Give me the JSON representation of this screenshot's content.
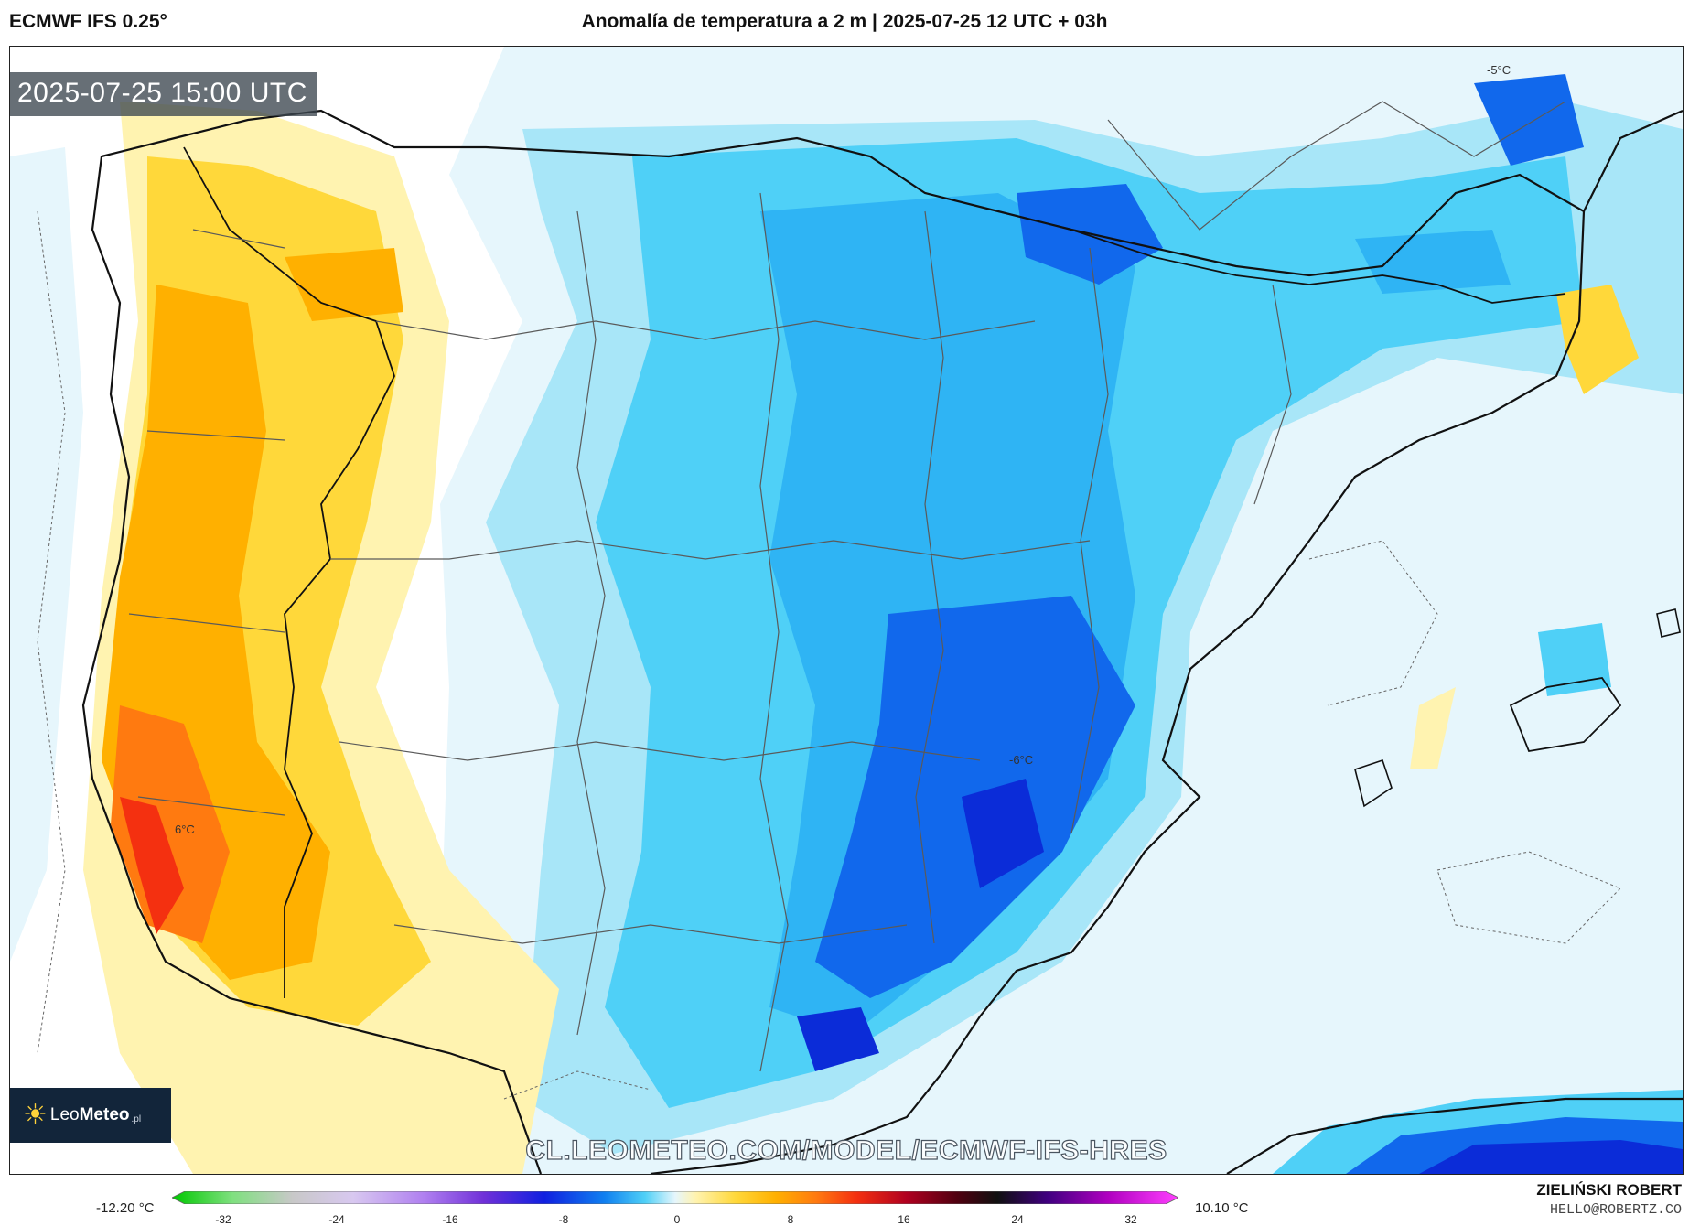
{
  "header": {
    "model": "ECMWF IFS 0.25°",
    "title": "Anomalía de temperatura a 2 m | 2025-07-25 12 UTC + 03h"
  },
  "map": {
    "timestamp": "2025-07-25 15:00 UTC",
    "labels": [
      "-5°C",
      "-6°C",
      "6°C"
    ],
    "watermark": "CL.LEOMETEO.COM/MODEL/ECMWF-IFS-HRES",
    "logo": {
      "prefix": "Leo",
      "brand": "Meteo",
      "suffix": ".pl"
    },
    "colors": {
      "warm_light": "#fff3b0",
      "warm": "#ffd83a",
      "warm_strong": "#ffb000",
      "hot": "#ff7a10",
      "hottest": "#f43010",
      "cool_light": "#e6f6fc",
      "cool": "#a8e6f8",
      "cold": "#4fd0f7",
      "colder": "#2fb4f4",
      "coldest": "#1168ec",
      "deep": "#0b2cd8"
    }
  },
  "colorbar": {
    "min_label": "-12.20 °C",
    "max_label": "10.10 °C",
    "ticks": [
      "-32",
      "-24",
      "-16",
      "-8",
      "0",
      "8",
      "16",
      "24",
      "32"
    ]
  },
  "credit": {
    "name": "ZIELIŃSKI ROBERT",
    "email": "HELLO@ROBERTZ.CO"
  }
}
